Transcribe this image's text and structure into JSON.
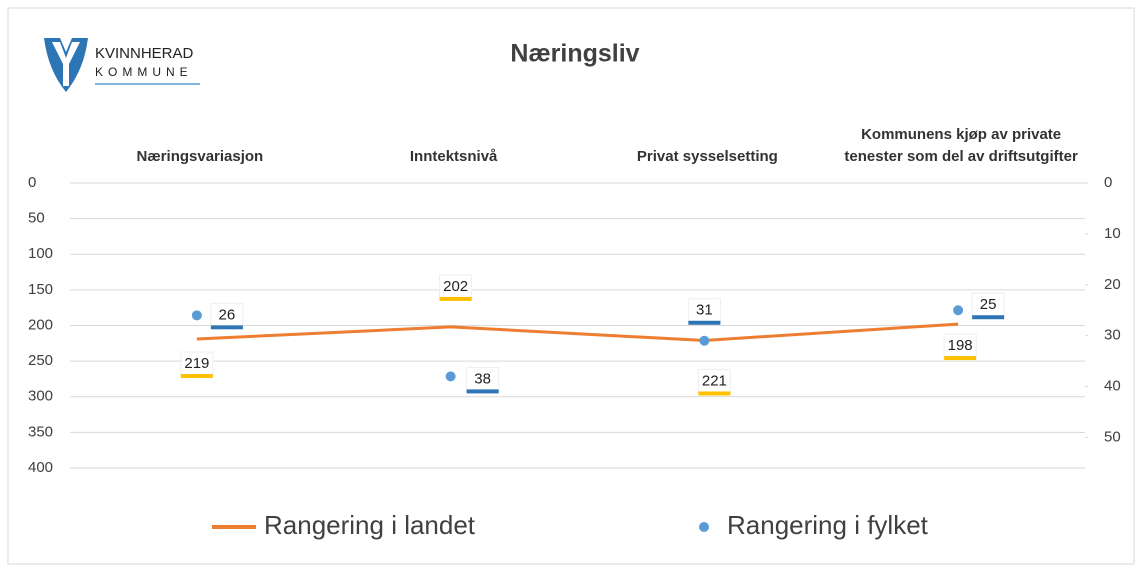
{
  "logo": {
    "line1": "KVINNHERAD",
    "line2": "KOMMUNE"
  },
  "chart_data": {
    "type": "line",
    "title": "Næringsliv",
    "categories": [
      "Næringsvariasjon",
      "Inntektsnivå",
      "Privat sysselsetting",
      "Kommunens kjøp av private tenester som del av driftsutgifter"
    ],
    "ylim": [
      0,
      400
    ],
    "yticks": [
      0,
      50,
      100,
      150,
      200,
      250,
      300,
      350,
      400
    ],
    "yreverse": true,
    "y2lim": [
      0,
      56
    ],
    "y2ticks": [
      0,
      10,
      20,
      30,
      40,
      50
    ],
    "y2reverse": true,
    "grid": true,
    "legend": "bottom",
    "series": [
      {
        "name": "Rangering i landet",
        "color": "#ed7d31",
        "values": [
          219,
          202,
          221,
          198
        ]
      },
      {
        "name": "Rangering i fylket",
        "color": "#5b9bd5",
        "values": [
          26,
          38,
          31,
          25
        ],
        "axis": "y2",
        "markers_only": true
      }
    ]
  }
}
